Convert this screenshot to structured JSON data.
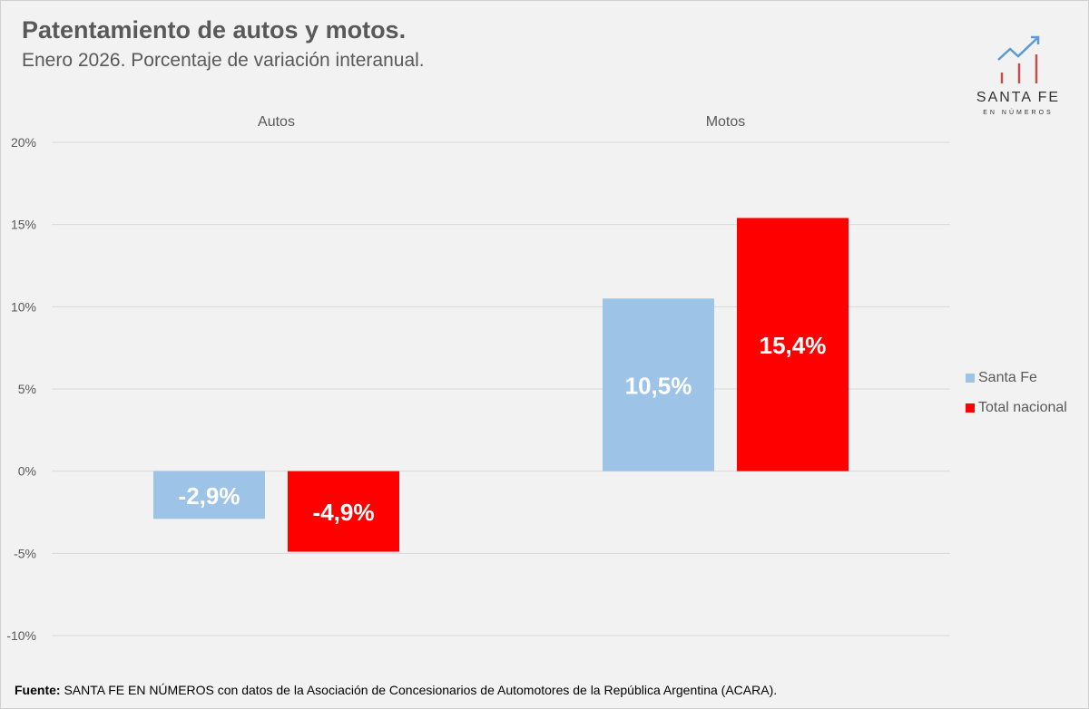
{
  "header": {
    "title": "Patentamiento de autos y motos.",
    "subtitle": "Enero 2026. Porcentaje de variación interanual."
  },
  "logo": {
    "name": "SANTA FE",
    "tagline": "EN NÚMEROS",
    "icon": "bar-chart-trend-arrow-icon"
  },
  "chart_data": {
    "type": "bar",
    "title": "Patentamiento de autos y motos.",
    "subtitle": "Enero 2026. Porcentaje de variación interanual.",
    "categories": [
      "Autos",
      "Motos"
    ],
    "series": [
      {
        "name": "Santa Fe",
        "values": [
          -2.9,
          10.5
        ],
        "labels": [
          "-2,9%",
          "10,5%"
        ],
        "color": "#9dc3e6"
      },
      {
        "name": "Total nacional",
        "values": [
          -4.9,
          15.4
        ],
        "labels": [
          "-4,9%",
          "15,4%"
        ],
        "color": "#ff0000"
      }
    ],
    "ylim": [
      -10,
      20
    ],
    "yticks": [
      -10,
      -5,
      0,
      5,
      10,
      15,
      20
    ],
    "ytick_labels": [
      "-10%",
      "-5%",
      "0%",
      "5%",
      "10%",
      "15%",
      "20%"
    ],
    "xlabel": "",
    "ylabel": "",
    "category_labels_position": "top",
    "grid": true,
    "legend_position": "right"
  },
  "footer": {
    "source_label": "Fuente:",
    "source_text": " SANTA FE EN NÚMEROS con datos de la Asociación de Concesionarios de Automotores de la República Argentina (ACARA)."
  },
  "colors": {
    "background": "#f2f2f2",
    "text": "#595959",
    "gridline": "#d9d9d9",
    "santa_fe": "#9dc3e6",
    "nacional": "#ff0000",
    "logo_arrow": "#5b9bd5",
    "logo_bars": "#c0504d"
  }
}
